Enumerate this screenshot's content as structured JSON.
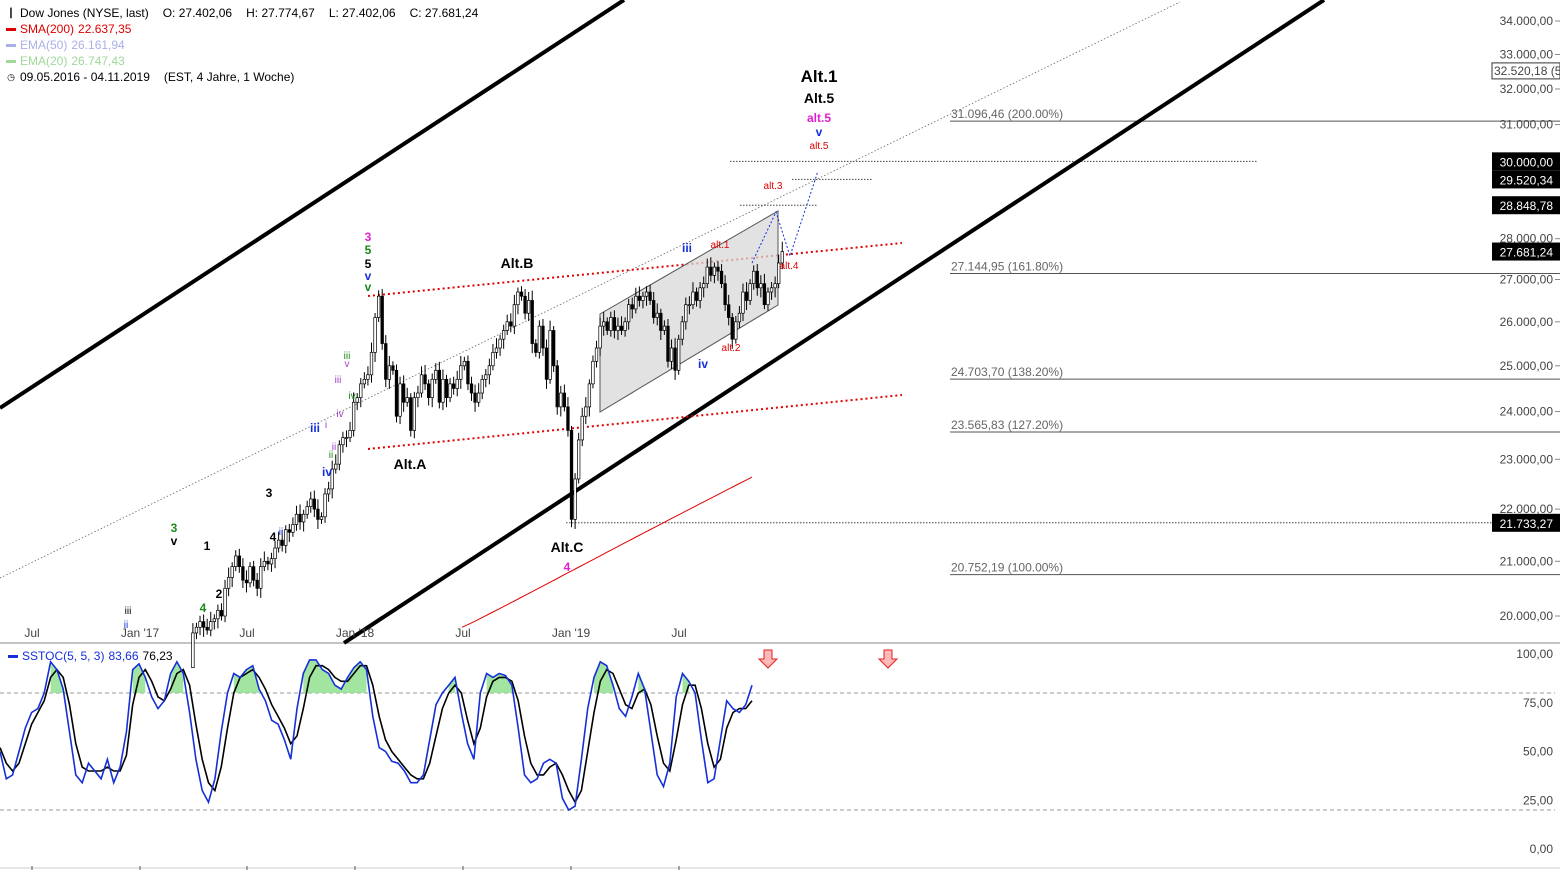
{
  "header": {
    "title": "Dow Jones (NYSE, last)",
    "open": "O: 27.402,06",
    "high": "H: 27.774,67",
    "low": "L: 27.402,06",
    "close": "C: 27.681,24",
    "sma_label": "SMA(200)",
    "sma_value": "22.637,35",
    "ema50_label": "EMA(50)",
    "ema50_value": "26.161,94",
    "ema20_label": "EMA(20)",
    "ema20_value": "26.747,43",
    "range": "09.05.2016 - 04.11.2019",
    "range_info": "(EST, 4 Jahre, 1 Woche)"
  },
  "colors": {
    "sma": "#e00000",
    "ema50": "#aab0e8",
    "ema20": "#9fd89a",
    "stoch_k": "#1530d8",
    "stoch_d": "#000000",
    "stoch_fill": "#90e090",
    "fib_line": "#555555",
    "channel": "#000000",
    "red_dotted": "#e00000",
    "highlight_box": "#000000"
  },
  "chart_data": [
    {
      "type": "candlestick",
      "series_name": "Dow Jones (NYSE, last)",
      "x_tick_labels": [
        "Jul",
        "Jan '17",
        "Jul",
        "Jan '18",
        "Jul",
        "Jan '19",
        "Jul"
      ],
      "y_tick_labels": [
        "34.000,00",
        "33.000,00",
        "32.000,00",
        "31.000,00",
        "28.000,00",
        "27.000,00",
        "26.000,00",
        "25.000,00",
        "24.000,00",
        "23.000,00",
        "22.000,00",
        "21.000,00",
        "20.000,00"
      ],
      "y_scale": "log",
      "ylim": [
        19700,
        34500
      ],
      "weekly_close": [
        17700,
        17900,
        17850,
        18050,
        17900,
        18100,
        18000,
        18500,
        18600,
        18450,
        18500,
        18600,
        18500,
        18400,
        18300,
        18200,
        18150,
        18100,
        18250,
        18200,
        18500,
        18900,
        19150,
        19100,
        19700,
        19800,
        19900,
        19800,
        19750,
        19900,
        19950,
        20100,
        20000,
        20500,
        20700,
        20900,
        21100,
        20900,
        20650,
        20600,
        20900,
        20650,
        20500,
        20900,
        21000,
        20950,
        21050,
        21250,
        21400,
        21300,
        21600,
        21550,
        21700,
        21900,
        21750,
        21900,
        22050,
        22200,
        22000,
        21800,
        21850,
        22300,
        22400,
        22800,
        22900,
        23300,
        23450,
        23450,
        23600,
        24200,
        24300,
        24600,
        24700,
        24800,
        25300,
        26100,
        26600,
        25500,
        24700,
        25000,
        24900,
        23900,
        24600,
        24200,
        24300,
        23600,
        24300,
        24400,
        24800,
        24600,
        24300,
        24700,
        24900,
        24200,
        24700,
        24300,
        24600,
        24500,
        24700,
        25000,
        25100,
        24600,
        24400,
        24200,
        24400,
        24700,
        24800,
        25000,
        25300,
        25400,
        25600,
        25800,
        26000,
        25900,
        26400,
        26700,
        26600,
        26200,
        26500,
        25500,
        25300,
        25900,
        25400,
        24700,
        25800,
        25000,
        24100,
        24400,
        24100,
        23600,
        21800,
        22600,
        23400,
        23900,
        24100,
        24600,
        25100,
        25400,
        25900,
        26000,
        25800,
        26100,
        25800,
        25900,
        25800,
        26000,
        26400,
        26300,
        26600,
        26500,
        26600,
        26700,
        26500,
        26100,
        26200,
        25800,
        25900,
        25100,
        25400,
        24900,
        25600,
        26000,
        26400,
        26400,
        26700,
        26500,
        26800,
        26900,
        27300,
        27100,
        27300,
        27200,
        26900,
        26400,
        26100,
        25600,
        26000,
        26200,
        26700,
        26500,
        26900,
        27200,
        26800,
        26900,
        26400,
        26700,
        26800,
        26900,
        27400,
        27681
      ],
      "sma200_start": 22637,
      "ema50": 26161.94,
      "ema20": 26747.43,
      "fib_levels": [
        {
          "value": 31096.46,
          "label": "31.096,46 (200.00%)"
        },
        {
          "value": 27144.95,
          "label": "27.144,95 (161.80%)"
        },
        {
          "value": 24703.7,
          "label": "24.703,70 (138.20%)"
        },
        {
          "value": 23565.83,
          "label": "23.565,83 (127.20%)"
        },
        {
          "value": 20752.19,
          "label": "20.752,19 (100.00%)"
        }
      ],
      "price_tags": [
        {
          "value": 30000,
          "label": "30.000,00",
          "style": "dark"
        },
        {
          "value": 29520.34,
          "label": "29.520,34",
          "style": "dark"
        },
        {
          "value": 28848.78,
          "label": "28.848,78",
          "style": "dark"
        },
        {
          "value": 27681.24,
          "label": "27.681,24",
          "style": "dark"
        },
        {
          "value": 21733.27,
          "label": "21.733,27",
          "style": "dark"
        },
        {
          "value": 32520.18,
          "label": "32.520,18 (5",
          "style": "outline"
        }
      ],
      "wave_labels": [
        {
          "text": "Alt.1",
          "color": "#000000",
          "size": "large"
        },
        {
          "text": "Alt.5",
          "color": "#000000",
          "size": "medium"
        },
        {
          "text": "alt.5",
          "color": "#e020d0",
          "size": "small-bold"
        },
        {
          "text": "v",
          "color": "#1530d8",
          "size": "small-bold"
        },
        {
          "text": "alt.5",
          "color": "#e00000",
          "size": "tiny"
        },
        {
          "text": "alt.3",
          "color": "#e00000",
          "size": "tiny"
        },
        {
          "text": "alt.1",
          "color": "#e00000",
          "size": "tiny"
        },
        {
          "text": "alt.4",
          "color": "#e00000",
          "size": "tiny"
        },
        {
          "text": "alt.2",
          "color": "#e00000",
          "size": "tiny"
        },
        {
          "text": "iii",
          "color": "#1530d8",
          "size": "small-bold"
        },
        {
          "text": "iv",
          "color": "#1530d8",
          "size": "small-bold"
        },
        {
          "text": "Alt.B",
          "color": "#000000",
          "size": "medium"
        },
        {
          "text": "Alt.A",
          "color": "#000000",
          "size": "medium"
        },
        {
          "text": "Alt.C",
          "color": "#000000",
          "size": "medium"
        },
        {
          "text": "4",
          "color": "#e020d0",
          "size": "small-bold"
        },
        {
          "text": "3",
          "color": "#e020d0",
          "size": "small-bold"
        },
        {
          "text": "5",
          "color": "#1a8a1a",
          "size": "small-bold"
        },
        {
          "text": "5",
          "color": "#000000",
          "size": "small-bold"
        },
        {
          "text": "v",
          "color": "#1530d8",
          "size": "small-bold"
        },
        {
          "text": "v",
          "color": "#1a8a1a",
          "size": "small-bold"
        },
        {
          "text": "iii",
          "color": "#1a8a1a",
          "size": "tiny"
        },
        {
          "text": "v",
          "color": "#a040d0",
          "size": "tiny"
        },
        {
          "text": "iii",
          "color": "#a040d0",
          "size": "tiny"
        },
        {
          "text": "iv",
          "color": "#1a8a1a",
          "size": "tiny"
        },
        {
          "text": "iv",
          "color": "#a040d0",
          "size": "tiny"
        },
        {
          "text": "iii",
          "color": "#1530d8",
          "size": "small-bold"
        },
        {
          "text": "i",
          "color": "#a040d0",
          "size": "tiny"
        },
        {
          "text": "ii",
          "color": "#a040d0",
          "size": "tiny"
        },
        {
          "text": "ii",
          "color": "#1a8a1a",
          "size": "tiny"
        },
        {
          "text": "iv",
          "color": "#1530d8",
          "size": "small-bold"
        },
        {
          "text": "3",
          "color": "#000000",
          "size": "small-bold"
        },
        {
          "text": "4",
          "color": "#000000",
          "size": "small-bold"
        },
        {
          "text": "ii",
          "color": "#1530d8",
          "size": "tiny"
        },
        {
          "text": "3",
          "color": "#1a8a1a",
          "size": "small-bold"
        },
        {
          "text": "v",
          "color": "#000000",
          "size": "small-bold"
        },
        {
          "text": "1",
          "color": "#000000",
          "size": "small-bold"
        },
        {
          "text": "4",
          "color": "#1a8a1a",
          "size": "small-bold"
        },
        {
          "text": "2",
          "color": "#000000",
          "size": "small-bold"
        },
        {
          "text": "iii",
          "color": "#000000",
          "size": "tiny"
        },
        {
          "text": "ii",
          "color": "#1530d8",
          "size": "tiny"
        }
      ]
    },
    {
      "type": "line",
      "series": [
        {
          "name": "SSTOC(5, 5, 3)",
          "last": "83,66"
        },
        {
          "name": "",
          "last": "76,23"
        }
      ],
      "y_tick_labels": [
        "100,00",
        "75,00",
        "50,00",
        "25,00",
        "0,00"
      ],
      "ylim": [
        0,
        100
      ],
      "upper_band": 80,
      "lower_band": 20,
      "k": [
        50,
        36,
        38,
        50,
        62,
        70,
        72,
        80,
        96,
        92,
        82,
        60,
        38,
        34,
        44,
        40,
        36,
        46,
        34,
        42,
        60,
        92,
        95,
        88,
        78,
        72,
        76,
        90,
        96,
        90,
        70,
        46,
        30,
        24,
        36,
        60,
        80,
        90,
        88,
        92,
        94,
        82,
        76,
        66,
        64,
        56,
        46,
        72,
        90,
        97,
        97,
        92,
        90,
        84,
        82,
        88,
        93,
        96,
        92,
        68,
        52,
        50,
        45,
        44,
        40,
        34,
        34,
        38,
        56,
        74,
        80,
        84,
        88,
        70,
        54,
        46,
        80,
        90,
        88,
        90,
        89,
        84,
        62,
        38,
        34,
        36,
        44,
        46,
        44,
        26,
        20,
        22,
        46,
        72,
        88,
        96,
        94,
        84,
        72,
        68,
        78,
        90,
        82,
        60,
        38,
        32,
        44,
        78,
        90,
        86,
        80,
        56,
        34,
        36,
        56,
        76,
        72,
        70,
        74,
        84
      ],
      "d": [
        52,
        44,
        40,
        44,
        54,
        64,
        70,
        76,
        88,
        92,
        88,
        74,
        54,
        42,
        40,
        40,
        40,
        42,
        40,
        40,
        48,
        74,
        88,
        92,
        86,
        78,
        76,
        82,
        90,
        92,
        84,
        64,
        46,
        34,
        30,
        42,
        62,
        80,
        88,
        90,
        92,
        88,
        82,
        74,
        68,
        62,
        54,
        58,
        72,
        88,
        94,
        94,
        92,
        88,
        86,
        86,
        90,
        94,
        94,
        84,
        68,
        56,
        50,
        46,
        42,
        38,
        36,
        36,
        44,
        58,
        72,
        80,
        84,
        80,
        66,
        54,
        62,
        78,
        86,
        88,
        88,
        86,
        76,
        58,
        44,
        38,
        38,
        42,
        44,
        38,
        30,
        24,
        30,
        50,
        70,
        86,
        92,
        90,
        82,
        74,
        72,
        80,
        82,
        74,
        58,
        44,
        40,
        56,
        74,
        84,
        84,
        72,
        54,
        42,
        46,
        62,
        70,
        72,
        72,
        76
      ]
    }
  ]
}
